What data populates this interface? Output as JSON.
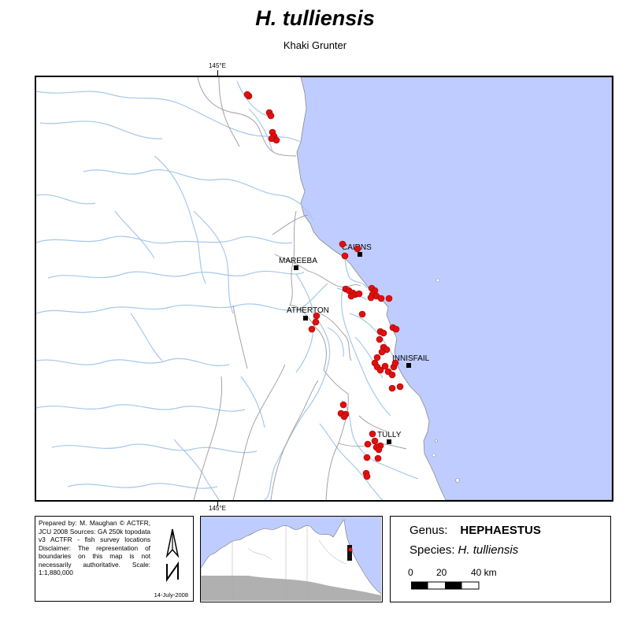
{
  "title": "H. tulliensis",
  "subtitle": "Khaki Grunter",
  "longitude_label_top": "145°E",
  "longitude_label_bottom": "145°E",
  "towns": [
    {
      "name": "CAIRNS"
    },
    {
      "name": "MAREEBA"
    },
    {
      "name": "ATHERTON"
    },
    {
      "name": "INNISFAIL"
    },
    {
      "name": "TULLY"
    }
  ],
  "credits": {
    "lines": "Prepared by: M. Maughan © ACTFR, JCU 2008 Sources: GA 250k topodata v3 ACTFR - fish survey locations Disclaimer: The representation of boundaries on this map is not necessarily authoritative. Scale: 1:1,880,000",
    "date": "14-July-2008"
  },
  "legend": {
    "genus_label": "Genus:",
    "genus_value": "HEPHAESTUS",
    "species_label": "Species:",
    "species_value": "H. tulliensis",
    "scale_ticks": [
      "0",
      "20",
      "40 km"
    ]
  },
  "colors": {
    "sea": "#bfccff",
    "land": "#ffffff",
    "river": "#a6c8ea",
    "boundary": "#9a9a9a",
    "point": "#e01010",
    "point_stroke": "#a00000",
    "inset_land_shaded": "#b0b0b0"
  }
}
